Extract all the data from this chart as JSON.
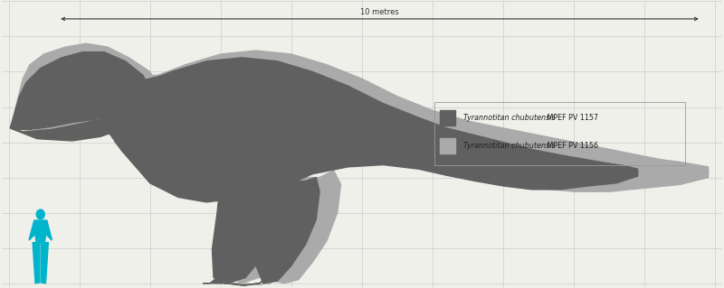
{
  "background_color": "#f0f0eb",
  "grid_color": "#cccccc",
  "scale_label": "10 metres",
  "legend": [
    {
      "label_italic": "Tyrannotitan chubutensis",
      "label_normal": " MPEF PV 1157",
      "color": "#606060"
    },
    {
      "label_italic": "Tyrannotitan chubutensis",
      "label_normal": " MPEF PV 1156",
      "color": "#aaaaaa"
    }
  ],
  "human_color": "#00b4cc",
  "dino_dark_color": "#606060",
  "dino_light_color": "#aaaaaa",
  "figsize": [
    8.0,
    3.19
  ],
  "dpi": 100
}
